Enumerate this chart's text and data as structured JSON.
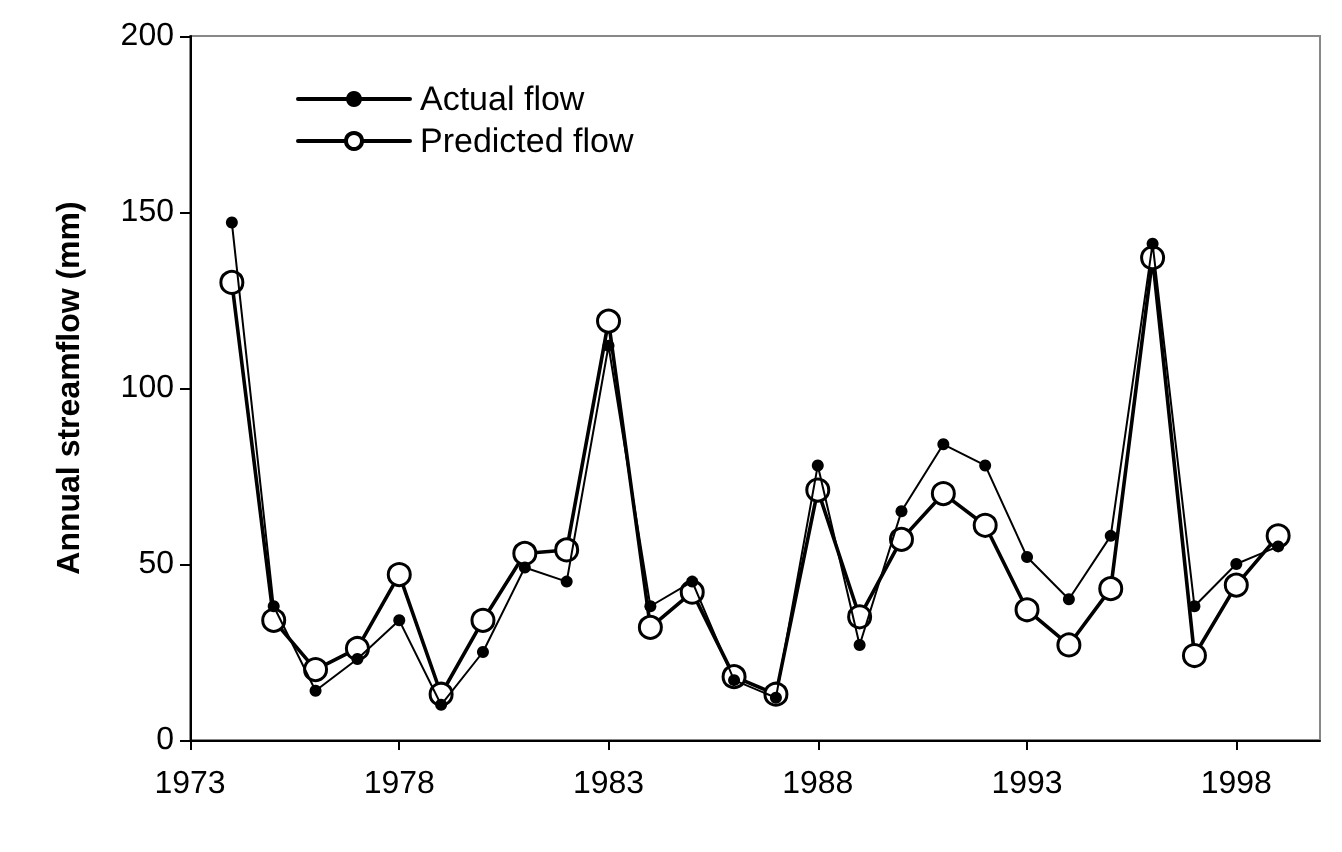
{
  "chart_data": {
    "type": "line",
    "ylabel": "Annual streamflow (mm)",
    "x": [
      1974,
      1975,
      1976,
      1977,
      1978,
      1979,
      1980,
      1981,
      1982,
      1983,
      1984,
      1985,
      1986,
      1987,
      1988,
      1989,
      1990,
      1991,
      1992,
      1993,
      1994,
      1995,
      1996,
      1997,
      1998,
      1999
    ],
    "series": [
      {
        "name": "Actual flow",
        "color": "#000000",
        "values": [
          147,
          38,
          14,
          23,
          34,
          10,
          25,
          49,
          45,
          112,
          38,
          45,
          17,
          12,
          78,
          27,
          65,
          84,
          78,
          52,
          40,
          58,
          141,
          38,
          50,
          55
        ]
      },
      {
        "name": "Predicted flow",
        "color": "#000000",
        "values": [
          130,
          34,
          20,
          26,
          47,
          13,
          34,
          53,
          54,
          119,
          32,
          42,
          18,
          13,
          71,
          35,
          57,
          70,
          61,
          37,
          27,
          43,
          137,
          24,
          44,
          58
        ]
      }
    ],
    "xlim": [
      1973,
      2000
    ],
    "xticks": [
      1973,
      1978,
      1983,
      1988,
      1993,
      1998
    ],
    "ylim": [
      0,
      200
    ],
    "yticks": [
      0,
      50,
      100,
      150,
      200
    ],
    "grid": false,
    "legend": "top left",
    "marker": "circle",
    "line_style": "solid"
  }
}
